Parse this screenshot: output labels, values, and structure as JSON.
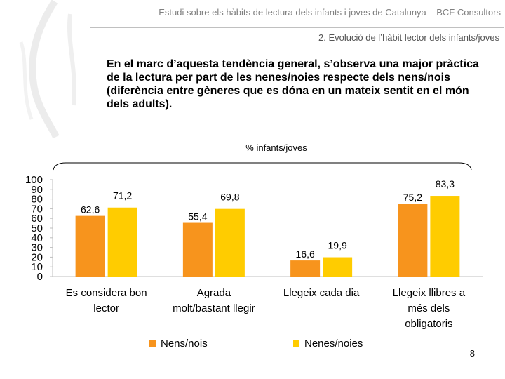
{
  "header": {
    "title": "Estudi sobre els hàbits de lectura dels infants i joves de Catalunya – BCF Consultors",
    "section": "2. Evolució de l’hàbit lector dels infants/joves"
  },
  "lead_text": "En el marc d’aquesta tendència general, s’observa una major pràctica de la lectura per part de les nenes/noies respecte dels nens/nois (diferència entre gèneres que es dóna en un mateix sentit en el món dels adults).",
  "unit_label": "% infants/joves",
  "page_number": "8",
  "colors": {
    "nens": "#f7941d",
    "nenes": "#ffcc00",
    "axis": "#bfbfbf",
    "text": "#000000"
  },
  "chart_data": {
    "type": "bar",
    "categories": [
      [
        "Es considera bon",
        "lector"
      ],
      [
        "Agrada",
        "molt/bastant llegir"
      ],
      [
        "Llegeix cada dia"
      ],
      [
        "Llegeix llibres a",
        "més dels",
        "obligatoris"
      ]
    ],
    "series": [
      {
        "name": "Nens/nois",
        "values": [
          62.6,
          55.4,
          16.6,
          75.2
        ],
        "labels": [
          "62,6",
          "55,4",
          "16,6",
          "75,2"
        ],
        "color": "#f7941d"
      },
      {
        "name": "Nenes/noies",
        "values": [
          71.2,
          69.8,
          19.9,
          83.3
        ],
        "labels": [
          "71,2",
          "69,8",
          "19,9",
          "83,3"
        ],
        "color": "#ffcc00"
      }
    ],
    "ylim": [
      0,
      100
    ],
    "yticks": [
      0,
      10,
      20,
      30,
      40,
      50,
      60,
      70,
      80,
      90,
      100
    ],
    "legend_position": "bottom",
    "grid": false
  }
}
